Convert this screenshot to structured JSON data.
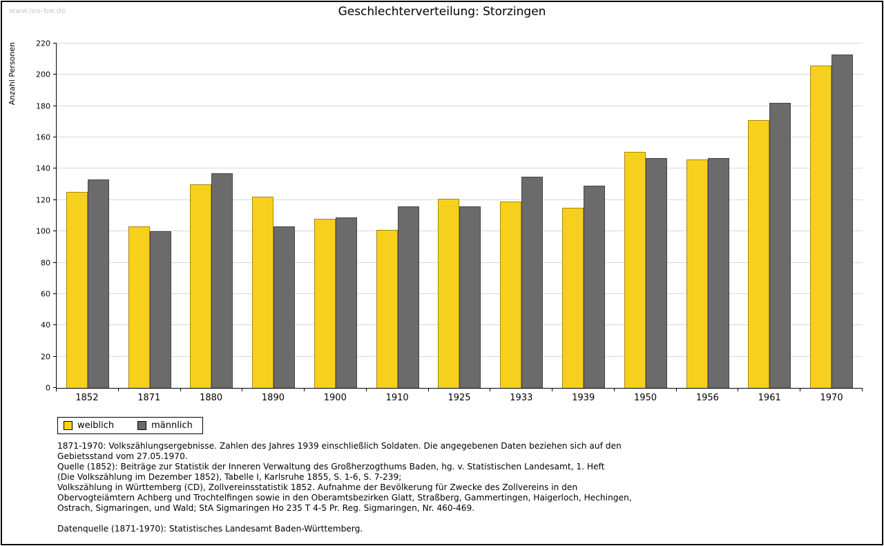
{
  "page": {
    "watermark": "www.leo-bw.de",
    "title": "Geschlechterverteilung: Storzingen"
  },
  "chart_data": {
    "type": "bar",
    "title": "Geschlechterverteilung: Storzingen",
    "xlabel": "",
    "ylabel": "Anzahl Personen",
    "ylim": [
      0,
      220
    ],
    "ytick_step": 20,
    "grid": true,
    "legend_position": "bottom-left",
    "categories": [
      "1852",
      "1871",
      "1880",
      "1890",
      "1900",
      "1910",
      "1925",
      "1933",
      "1939",
      "1950",
      "1956",
      "1961",
      "1970"
    ],
    "series": [
      {
        "name": "weiblich",
        "color": "#F7D01E",
        "values": [
          125,
          103,
          130,
          122,
          108,
          101,
          121,
          119,
          115,
          151,
          146,
          171,
          206
        ]
      },
      {
        "name": "männlich",
        "color": "#6B6B6B",
        "values": [
          133,
          100,
          137,
          103,
          109,
          116,
          116,
          135,
          129,
          147,
          147,
          182,
          213
        ]
      }
    ]
  },
  "footnotes": {
    "lines": [
      "1871-1970: Volkszählungsergebnisse. Zahlen des Jahres 1939 einschließlich Soldaten. Die angegebenen Daten beziehen sich auf den",
      "Gebietsstand vom 27.05.1970.",
      "Quelle (1852): Beiträge zur Statistik der Inneren Verwaltung des Großherzogthums Baden, hg. v. Statistischen Landesamt, 1. Heft",
      "(Die Volkszählung im Dezember 1852), Tabelle I, Karlsruhe 1855, S. 1-6, S. 7-239;",
      "Volkszählung in Württemberg (CD), Zollvereinsstatistik 1852. Aufnahme der Bevölkerung für Zwecke des Zollvereins in den",
      "Obervogteiämtern Achberg und Trochtelfingen sowie in den Oberamtsbezirken Glatt, Straßberg, Gammertingen, Haigerloch, Hechingen,",
      "Ostrach, Sigmaringen, und Wald; StA Sigmaringen Ho 235 T 4-5 Pr. Reg. Sigmaringen, Nr. 460-469.",
      "",
      "Datenquelle (1871-1970): Statistisches Landesamt Baden-Württemberg."
    ]
  }
}
